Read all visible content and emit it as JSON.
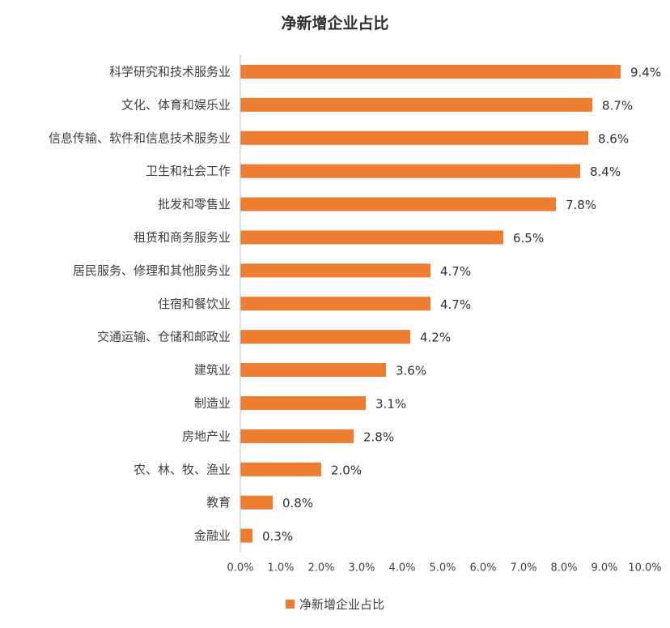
{
  "title": "净新增企业占比",
  "chart_data": {
    "type": "bar",
    "orientation": "horizontal",
    "title": "净新增企业占比",
    "xlim": [
      0,
      10
    ],
    "x_ticks": [
      "0.0%",
      "1.0%",
      "2.0%",
      "3.0%",
      "4.0%",
      "5.0%",
      "6.0%",
      "7.0%",
      "8.0%",
      "9.0%",
      "10.0%"
    ],
    "categories": [
      "科学研究和技术服务业",
      "文化、体育和娱乐业",
      "信息传输、软件和信息技术服务业",
      "卫生和社会工作",
      "批发和零售业",
      "租赁和商务服务业",
      "居民服务、修理和其他服务业",
      "住宿和餐饮业",
      "交通运输、仓储和邮政业",
      "建筑业",
      "制造业",
      "房地产业",
      "农、林、牧、渔业",
      "教育",
      "金融业"
    ],
    "series": [
      {
        "name": "净新增企业占比",
        "values": [
          9.4,
          8.7,
          8.6,
          8.4,
          7.8,
          6.5,
          4.7,
          4.7,
          4.2,
          3.6,
          3.1,
          2.8,
          2.0,
          0.8,
          0.3
        ],
        "labels": [
          "9.4%",
          "8.7%",
          "8.6%",
          "8.4%",
          "7.8%",
          "6.5%",
          "4.7%",
          "4.7%",
          "4.2%",
          "3.6%",
          "3.1%",
          "2.8%",
          "2.0%",
          "0.8%",
          "0.3%"
        ],
        "color": "#ED7D31"
      }
    ],
    "grid": false,
    "legend_position": "bottom"
  }
}
